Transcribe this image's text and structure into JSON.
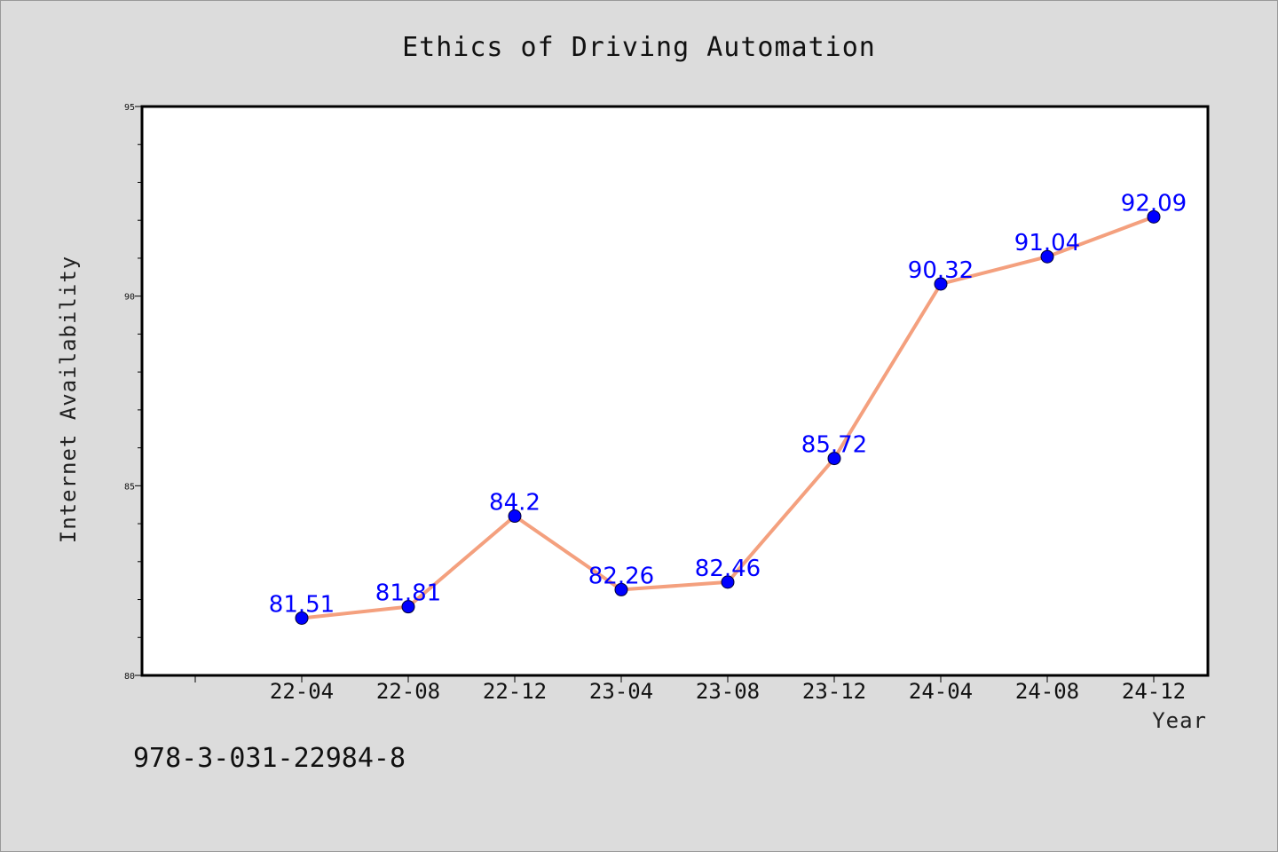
{
  "chart_data": {
    "type": "line",
    "title": "Ethics of Driving Automation",
    "xlabel": "Year",
    "ylabel": "Internet Availability",
    "categories": [
      "22-04",
      "22-08",
      "22-12",
      "23-04",
      "23-08",
      "23-12",
      "24-04",
      "24-08",
      "24-12"
    ],
    "series": [
      {
        "values": [
          81.51,
          81.81,
          84.2,
          82.26,
          82.46,
          85.72,
          90.32,
          91.04,
          92.09
        ],
        "line_color": "#f4a07e",
        "marker_color": "#0000ff"
      }
    ],
    "data_labels": [
      "81.51",
      "81.81",
      "84.2",
      "82.26",
      "82.46",
      "85.72",
      "90.32",
      "91.04",
      "92.09"
    ],
    "ylim": [
      80,
      95
    ],
    "yticks": [
      80,
      85,
      90,
      95
    ],
    "y_tick_labels": [
      "80",
      "85",
      "90",
      "95"
    ],
    "grid": false,
    "legend": "none"
  },
  "footer": {
    "text": "978-3-031-22984-8"
  },
  "colors": {
    "background": "#dcdcdc",
    "plot_area": "#ffffff",
    "axes": "#000000"
  }
}
